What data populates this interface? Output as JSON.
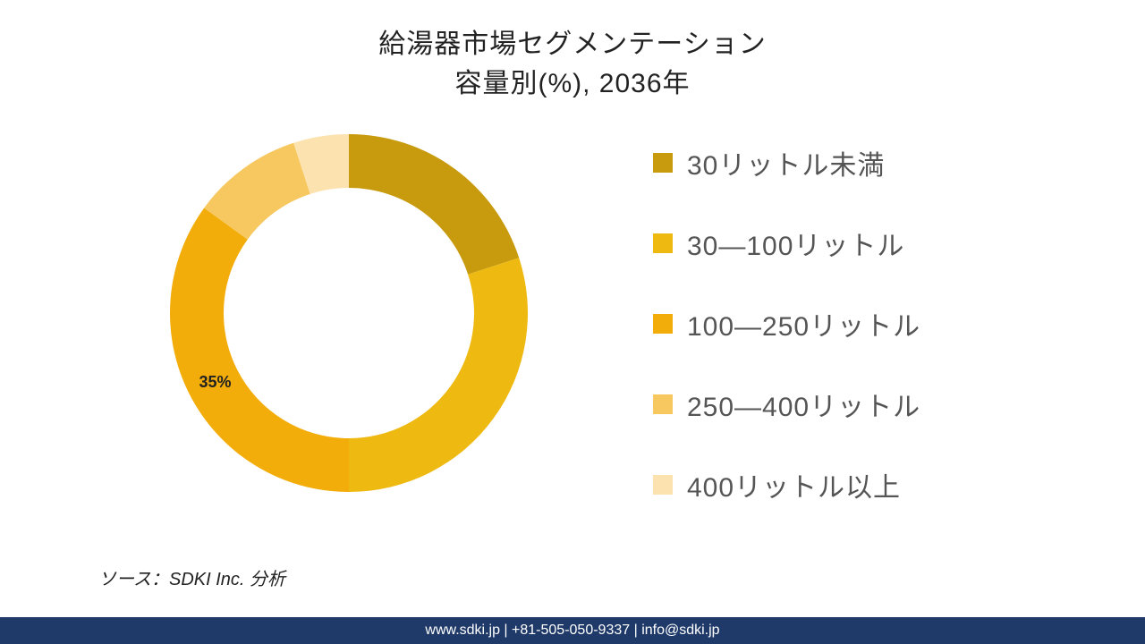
{
  "title": {
    "line1": "給湯器市場セグメンテーション",
    "line2": "容量別(%), 2036年",
    "fontsize": 30,
    "color": "#222222"
  },
  "chart": {
    "type": "donut",
    "outer_radius": 200,
    "inner_radius": 140,
    "background_color": "#ffffff",
    "start_angle_deg": 0,
    "slices": [
      {
        "label": "30リットル未満",
        "value": 20,
        "color": "#c89a0e"
      },
      {
        "label": "30―100リットル",
        "value": 30,
        "color": "#eeb911"
      },
      {
        "label": "100―250リットル",
        "value": 35,
        "color": "#f3ad0b",
        "data_label": "35%"
      },
      {
        "label": "250―400リットル",
        "value": 10,
        "color": "#f7c85f"
      },
      {
        "label": "400リットル以上",
        "value": 5,
        "color": "#fce2af"
      }
    ],
    "data_label_fontsize": 18,
    "data_label_fontweight": 700,
    "data_label_color": "#222222"
  },
  "legend": {
    "position": "right",
    "swatch_size": 22,
    "fontsize": 30,
    "text_color": "#555555",
    "item_gap": 46
  },
  "source": {
    "text": "ソース：SDKI Inc. 分析",
    "fontsize": 20,
    "font_style": "italic",
    "color": "#222222"
  },
  "footer": {
    "text": "www.sdki.jp | +81-505-050-9337 | info@sdki.jp",
    "background_color": "#1f3a68",
    "text_color": "#ffffff",
    "fontsize": 16
  }
}
